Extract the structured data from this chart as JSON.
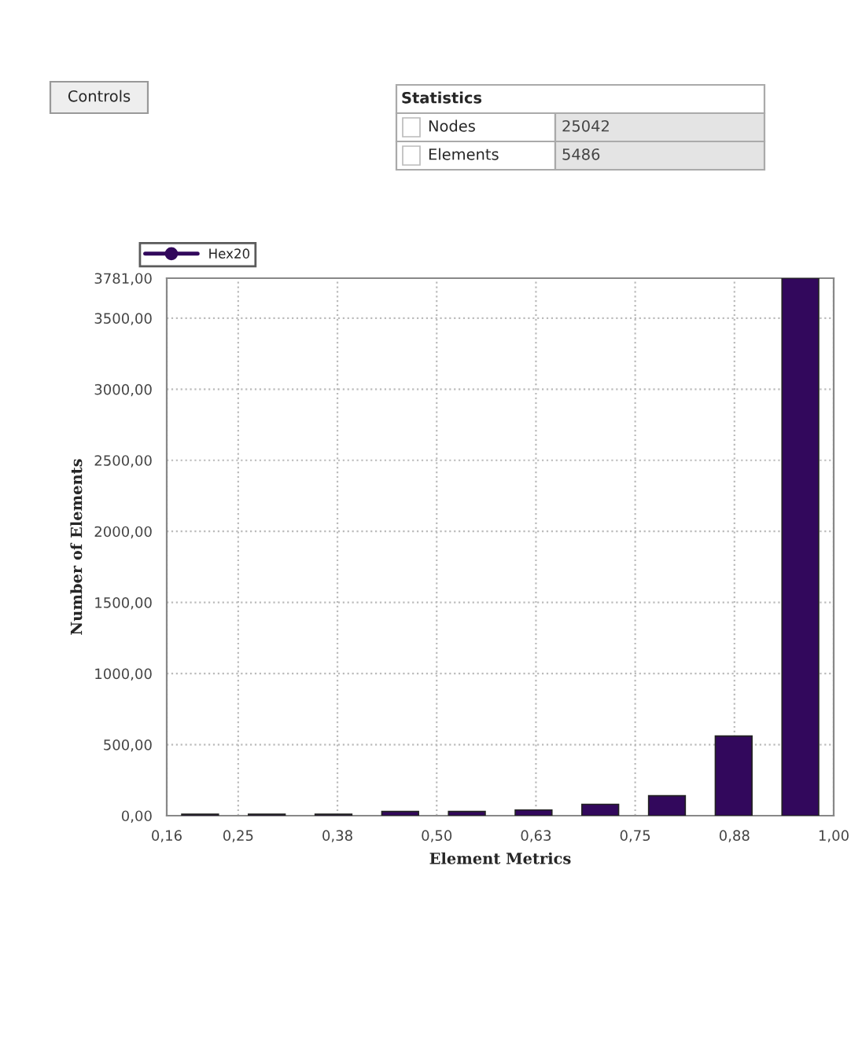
{
  "chart_data": {
    "type": "histogram",
    "xlabel": "Element Metrics",
    "ylabel": "Number of Elements",
    "bins": [
      0.16,
      0.244,
      0.328,
      0.412,
      0.496,
      0.58,
      0.664,
      0.748,
      0.832,
      0.916,
      1.0
    ],
    "series": [
      {
        "name": "Hex20",
        "color": "#32085c",
        "values": [
          10,
          10,
          10,
          30,
          30,
          40,
          80,
          140,
          560,
          3781
        ]
      }
    ],
    "xlim": [
      0.16,
      1.0
    ],
    "xticks": [
      {
        "value": 0.16,
        "label": "0,16"
      },
      {
        "value": 0.25,
        "label": "0,25"
      },
      {
        "value": 0.375,
        "label": "0,38"
      },
      {
        "value": 0.5,
        "label": "0,50"
      },
      {
        "value": 0.625,
        "label": "0,63"
      },
      {
        "value": 0.75,
        "label": "0,75"
      },
      {
        "value": 0.875,
        "label": "0,88"
      },
      {
        "value": 1.0,
        "label": "1,00"
      }
    ],
    "ylim": [
      0,
      3781
    ],
    "yticks": [
      {
        "value": 0,
        "label": "0,00"
      },
      {
        "value": 500,
        "label": "500,00"
      },
      {
        "value": 1000,
        "label": "1000,00"
      },
      {
        "value": 1500,
        "label": "1500,00"
      },
      {
        "value": 2000,
        "label": "2000,00"
      },
      {
        "value": 2500,
        "label": "2500,00"
      },
      {
        "value": 3000,
        "label": "3000,00"
      },
      {
        "value": 3500,
        "label": "3500,00"
      },
      {
        "value": 3781,
        "label": "3781,00"
      }
    ],
    "grid": true,
    "legend": "top left",
    "marker": "circle",
    "annotations": [
      "Controls",
      "Statistics",
      "Nodes",
      "25042",
      "Elements",
      "5486"
    ]
  }
}
